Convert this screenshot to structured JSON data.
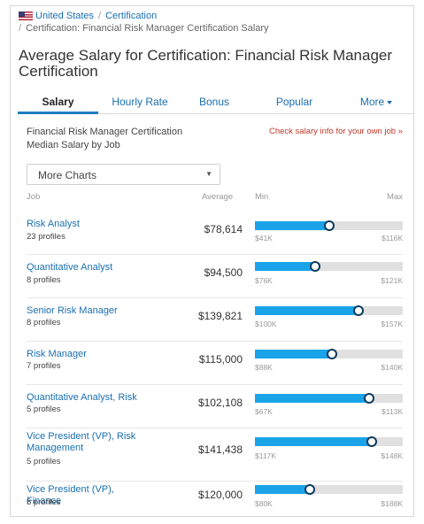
{
  "breadcrumb": {
    "country": "United States",
    "separator": "/",
    "section": "Certification",
    "current": "Certification: Financial Risk Manager Certification Salary"
  },
  "page_title": "Average Salary for Certification: Financial Risk Manager Certification",
  "tabs": [
    {
      "label": "Salary",
      "active": true
    },
    {
      "label": "Hourly Rate",
      "active": false
    },
    {
      "label": "Bonus",
      "active": false
    },
    {
      "label": "Popular",
      "active": false
    },
    {
      "label": "More",
      "active": false
    }
  ],
  "section": {
    "title": "Financial Risk Manager Certification Median Salary by Job",
    "own_job_link": "Check salary info for your own job »"
  },
  "dropdown": {
    "selected": "More Charts",
    "arrow": "▼"
  },
  "columns": {
    "job": "Job",
    "average": "Average",
    "min": "Min",
    "max": "Max"
  },
  "rows": [
    {
      "job": "Risk Analyst",
      "profiles": "23 profiles",
      "average": "$78,614",
      "min": "$41K",
      "max": "$116K",
      "position": 0.5
    },
    {
      "job": "Quantitative Analyst",
      "profiles": "8 profiles",
      "average": "$94,500",
      "min": "$76K",
      "max": "$121K",
      "position": 0.41
    },
    {
      "job": "Senior Risk Manager",
      "profiles": "8 profiles",
      "average": "$139,821",
      "min": "$100K",
      "max": "$157K",
      "position": 0.7
    },
    {
      "job": "Risk Manager",
      "profiles": "7 profiles",
      "average": "$115,000",
      "min": "$88K",
      "max": "$140K",
      "position": 0.52
    },
    {
      "job": "Quantitative Analyst, Risk",
      "profiles": "5 profiles",
      "average": "$102,108",
      "min": "$67K",
      "max": "$113K",
      "position": 0.77
    },
    {
      "job": "Vice President (VP), Risk Management",
      "profiles": "5 profiles",
      "average": "$141,438",
      "min": "$117K",
      "max": "$148K",
      "position": 0.79
    },
    {
      "job": "Vice President (VP), Finance",
      "profiles": "5 profiles",
      "average": "$120,000",
      "min": "$80K",
      "max": "$188K",
      "position": 0.37
    }
  ],
  "colors": {
    "accent": "#1aa3e8",
    "link": "#1a6fb0",
    "marker_border": "#0d3b5e",
    "own_job_link": "#c0392b"
  }
}
